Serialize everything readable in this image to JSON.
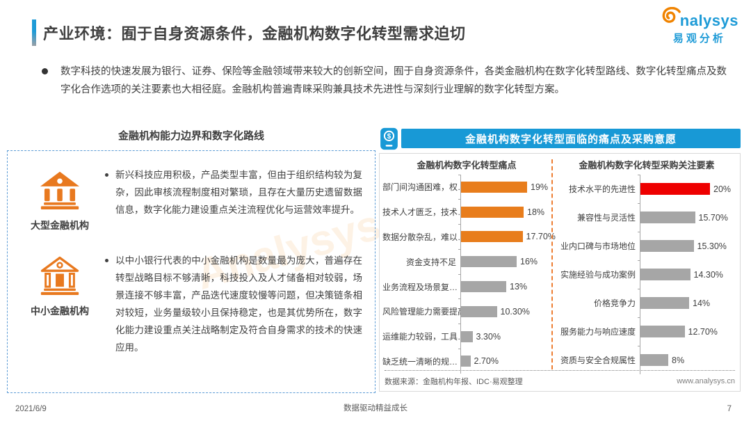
{
  "header": {
    "title": "产业环境：囿于自身资源条件，金融机构数字化转型需求迫切",
    "logo_brand": "nalysys",
    "logo_cn": "易观分析"
  },
  "intro": {
    "text": "数字科技的快速发展为银行、证券、保险等金融领域带来较大的创新空间，囿于自身资源条件，各类金融机构在数字化转型路线、数字化转型痛点及数字化合作选项的关注要素也大相径庭。金融机构普遍青睐采购兼具技术先进性与深刻行业理解的数字化转型方案。"
  },
  "left_panel": {
    "title": "金融机构能力边界和数字化路线",
    "items": [
      {
        "label": "大型金融机构",
        "icon": "bank-solid-icon",
        "text": "新兴科技应用积极，产品类型丰富，但由于组织结构较为复杂，因此审核流程制度相对繁琐，且存在大量历史遗留数据信息，数字化能力建设重点关注流程优化与运营效率提升。"
      },
      {
        "label": "中小金融机构",
        "icon": "bank-outline-icon",
        "text": "以中小银行代表的中小金融机构是数量最为庞大，普遍存在转型战略目标不够清晰，科技投入及人才储备相对较弱，场景连接不够丰富，产品迭代速度较慢等问题，但决策链条相对较短，业务量级较小且保持稳定，也是其优势所在，数字化能力建设重点关注战略制定及符合自身需求的技术的快速应用。"
      }
    ]
  },
  "right_panel": {
    "header": "金融机构数字化转型面临的痛点及采购意愿",
    "source": "数据来源：金融机构年报、IDC·易观整理",
    "website": "www.analysys.cn"
  },
  "chart_data": [
    {
      "type": "bar",
      "orientation": "horizontal",
      "title": "金融机构数字化转型痛点",
      "categories": [
        "部门间沟通困难，权…",
        "技术人才匮乏，技术…",
        "数据分散杂乱，难以…",
        "资金支持不足",
        "业务流程及场景复…",
        "风险管理能力需要提高",
        "运维能力较弱，工具…",
        "缺乏统一清晰的规…"
      ],
      "values": [
        19,
        18,
        17.7,
        16,
        13,
        10.3,
        3.3,
        2.7
      ],
      "value_labels": [
        "19%",
        "18%",
        "17.70%",
        "16%",
        "13%",
        "10.30%",
        "3.30%",
        "2.70%"
      ],
      "bar_colors": [
        "#e87d1c",
        "#e87d1c",
        "#e87d1c",
        "#a6a6a6",
        "#a6a6a6",
        "#a6a6a6",
        "#a6a6a6",
        "#a6a6a6"
      ],
      "xlim": [
        0,
        20
      ],
      "grid": false,
      "legend": false
    },
    {
      "type": "bar",
      "orientation": "horizontal",
      "title": "金融机构数字化转型采购关注要素",
      "categories": [
        "技术水平的先进性",
        "兼容性与灵活性",
        "业内口碑与市场地位",
        "实施经验与成功案例",
        "价格竞争力",
        "服务能力与响应速度",
        "资质与安全合规属性"
      ],
      "values": [
        20,
        15.7,
        15.3,
        14.3,
        14,
        12.7,
        8
      ],
      "value_labels": [
        "20%",
        "15.70%",
        "15.30%",
        "14.30%",
        "14%",
        "12.70%",
        "8%"
      ],
      "bar_colors": [
        "#ee0000",
        "#a6a6a6",
        "#a6a6a6",
        "#a6a6a6",
        "#a6a6a6",
        "#a6a6a6",
        "#a6a6a6"
      ],
      "xlim": [
        0,
        20
      ],
      "grid": false,
      "legend": false
    }
  ],
  "footer": {
    "date": "2021/6/9",
    "center": "数据驱动精益成长",
    "page": "7"
  },
  "colors": {
    "accent_blue": "#1899d6",
    "orange": "#e87d1c",
    "red": "#ee0000",
    "gray_bar": "#a6a6a6"
  }
}
